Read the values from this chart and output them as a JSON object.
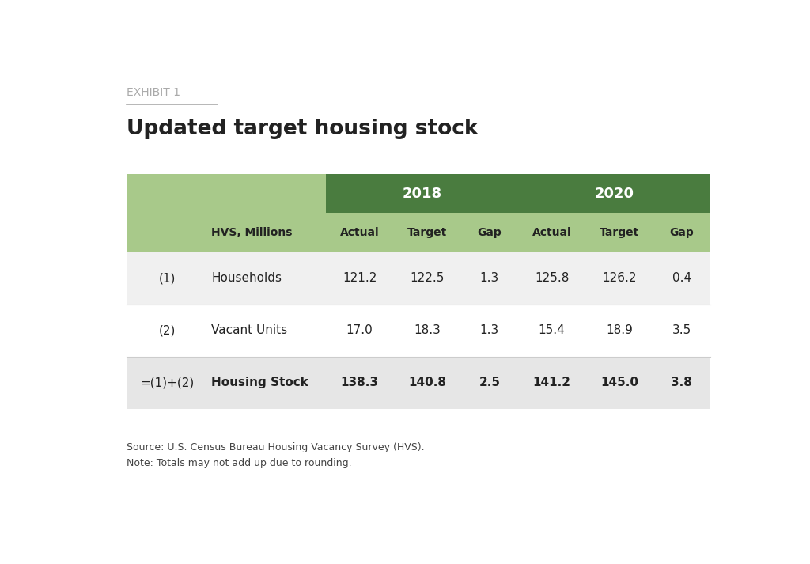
{
  "exhibit_label": "EXHIBIT 1",
  "title": "Updated target housing stock",
  "source_note": "Source: U.S. Census Bureau Housing Vacancy Survey (HVS).\nNote: Totals may not add up due to rounding.",
  "year_headers": [
    "2018",
    "2020"
  ],
  "col_headers": [
    "HVS, Millions",
    "Actual",
    "Target",
    "Gap",
    "Actual",
    "Target",
    "Gap"
  ],
  "row_labels": [
    "(1)",
    "(2)",
    "=(1)+(2)"
  ],
  "row_names": [
    "Households",
    "Vacant Units",
    "Housing Stock"
  ],
  "data": [
    [
      "121.2",
      "122.5",
      "1.3",
      "125.8",
      "126.2",
      "0.4"
    ],
    [
      "17.0",
      "18.3",
      "1.3",
      "15.4",
      "18.9",
      "3.5"
    ],
    [
      "138.3",
      "140.8",
      "2.5",
      "141.2",
      "145.0",
      "3.8"
    ]
  ],
  "color_header_dark": "#4a7c3f",
  "color_header_light": "#a8c98a",
  "color_row_alt": "#f0f0f0",
  "color_row_white": "#ffffff",
  "color_row_last": "#e6e6e6",
  "color_text_header": "#ffffff",
  "color_text_dark": "#222222",
  "color_exhibit": "#aaaaaa",
  "color_title": "#222222",
  "color_divider": "#aaaaaa",
  "background_color": "#ffffff"
}
